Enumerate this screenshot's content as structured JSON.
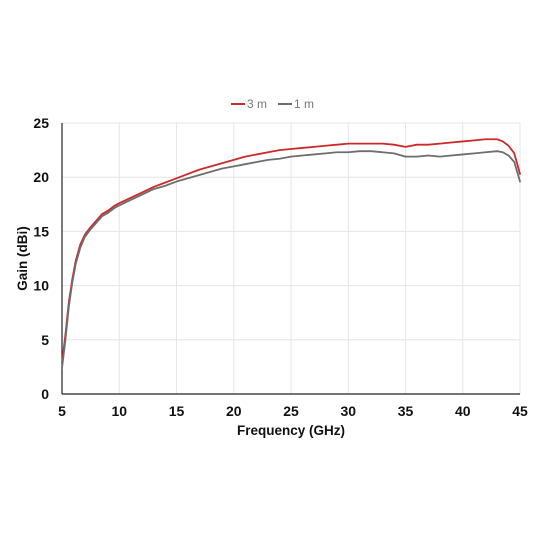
{
  "chart_data": {
    "type": "line",
    "xlabel": "Frequency  (GHz)",
    "ylabel": "Gain (dBi)",
    "xlim": [
      5,
      45
    ],
    "ylim": [
      0,
      25
    ],
    "xticks": [
      5,
      10,
      15,
      20,
      25,
      30,
      35,
      40,
      45
    ],
    "yticks": [
      0,
      5,
      10,
      15,
      20,
      25
    ],
    "grid": true,
    "legend_position": "top-center",
    "series": [
      {
        "name": "3 m",
        "color": "#cc2a2a",
        "x": [
          5,
          5.3,
          5.6,
          5.9,
          6.2,
          6.6,
          7,
          7.5,
          8,
          8.5,
          9,
          9.5,
          10,
          11,
          12,
          13,
          14,
          15,
          16,
          17,
          18,
          19,
          20,
          21,
          22,
          23,
          24,
          25,
          26,
          27,
          28,
          29,
          30,
          31,
          32,
          33,
          34,
          35,
          36,
          37,
          38,
          39,
          40,
          41,
          42,
          43,
          43.5,
          44,
          44.5,
          45
        ],
        "y": [
          2.8,
          5.5,
          8.5,
          10.6,
          12.3,
          13.8,
          14.7,
          15.4,
          16.0,
          16.6,
          16.9,
          17.3,
          17.6,
          18.1,
          18.6,
          19.1,
          19.5,
          19.9,
          20.3,
          20.7,
          21.0,
          21.3,
          21.6,
          21.9,
          22.1,
          22.3,
          22.5,
          22.6,
          22.7,
          22.8,
          22.9,
          23.0,
          23.1,
          23.1,
          23.1,
          23.1,
          23.0,
          22.8,
          23.0,
          23.0,
          23.1,
          23.2,
          23.3,
          23.4,
          23.5,
          23.5,
          23.3,
          22.9,
          22.2,
          20.3
        ]
      },
      {
        "name": "1 m",
        "color": "#6e6e6e",
        "x": [
          5,
          5.3,
          5.6,
          5.9,
          6.2,
          6.6,
          7,
          7.5,
          8,
          8.5,
          9,
          9.5,
          10,
          11,
          12,
          13,
          14,
          15,
          16,
          17,
          18,
          19,
          20,
          21,
          22,
          23,
          24,
          25,
          26,
          27,
          28,
          29,
          30,
          31,
          32,
          33,
          34,
          35,
          36,
          37,
          38,
          39,
          40,
          41,
          42,
          43,
          43.5,
          44,
          44.5,
          45
        ],
        "y": [
          2.4,
          5.0,
          8.1,
          10.3,
          12.0,
          13.5,
          14.5,
          15.2,
          15.8,
          16.4,
          16.7,
          17.1,
          17.4,
          17.9,
          18.4,
          18.9,
          19.2,
          19.6,
          19.9,
          20.2,
          20.5,
          20.8,
          21.0,
          21.2,
          21.4,
          21.6,
          21.7,
          21.9,
          22.0,
          22.1,
          22.2,
          22.3,
          22.3,
          22.4,
          22.4,
          22.3,
          22.2,
          21.9,
          21.9,
          22.0,
          21.9,
          22.0,
          22.1,
          22.2,
          22.3,
          22.4,
          22.3,
          22.0,
          21.4,
          19.6
        ]
      }
    ]
  }
}
